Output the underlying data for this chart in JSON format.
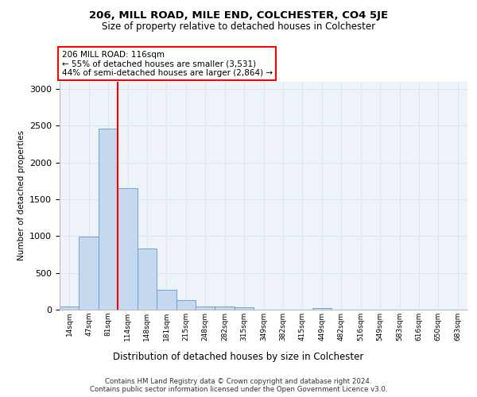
{
  "title1": "206, MILL ROAD, MILE END, COLCHESTER, CO4 5JE",
  "title2": "Size of property relative to detached houses in Colchester",
  "bottom_label": "Distribution of detached houses by size in Colchester",
  "ylabel": "Number of detached properties",
  "footer1": "Contains HM Land Registry data © Crown copyright and database right 2024.",
  "footer2": "Contains public sector information licensed under the Open Government Licence v3.0.",
  "annotation_line1": "206 MILL ROAD: 116sqm",
  "annotation_line2": "← 55% of detached houses are smaller (3,531)",
  "annotation_line3": "44% of semi-detached houses are larger (2,864) →",
  "bar_labels": [
    "14sqm",
    "47sqm",
    "81sqm",
    "114sqm",
    "148sqm",
    "181sqm",
    "215sqm",
    "248sqm",
    "282sqm",
    "315sqm",
    "349sqm",
    "382sqm",
    "415sqm",
    "449sqm",
    "482sqm",
    "516sqm",
    "549sqm",
    "583sqm",
    "616sqm",
    "650sqm",
    "683sqm"
  ],
  "bar_values": [
    40,
    990,
    2460,
    1650,
    830,
    270,
    130,
    40,
    40,
    30,
    0,
    0,
    0,
    20,
    0,
    0,
    0,
    0,
    0,
    0,
    0
  ],
  "bar_color": "#c5d8ed",
  "bar_edge_color": "#5b9bd5",
  "grid_color": "#dce6f1",
  "property_line_x": 2.5,
  "ylim": [
    0,
    3100
  ],
  "yticks": [
    0,
    500,
    1000,
    1500,
    2000,
    2500,
    3000
  ],
  "bg_color": "#eef3fa"
}
